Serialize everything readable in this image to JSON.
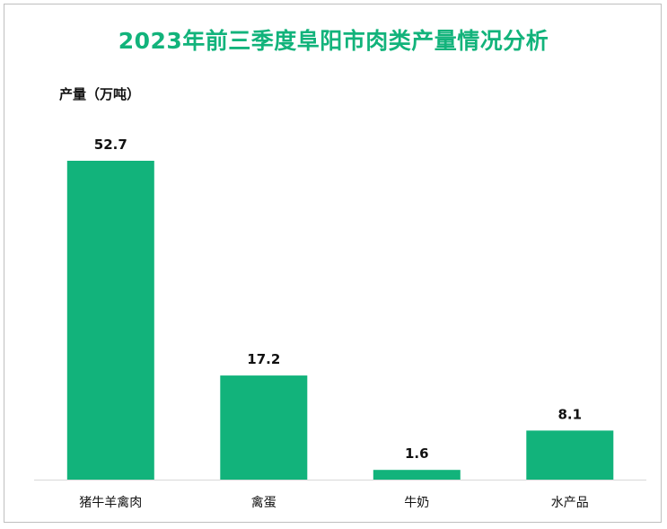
{
  "chart_data": {
    "type": "bar",
    "title": "2023年前三季度阜阳市肉类产量情况分析",
    "ylabel": "产量（万吨）",
    "xlabel": "",
    "categories": [
      "猪牛羊禽肉",
      "禽蛋",
      "牛奶",
      "水产品"
    ],
    "values": [
      52.7,
      17.2,
      1.6,
      8.1
    ],
    "data_labels": [
      "52.7",
      "17.2",
      "1.6",
      "8.1"
    ],
    "ylim": [
      0,
      52.7
    ],
    "grid": false,
    "legend": "none"
  },
  "colors": {
    "bar": "#12b37b",
    "title": "#12b37b",
    "axis": "#d9d9d9",
    "border": "#bfbfbf"
  }
}
